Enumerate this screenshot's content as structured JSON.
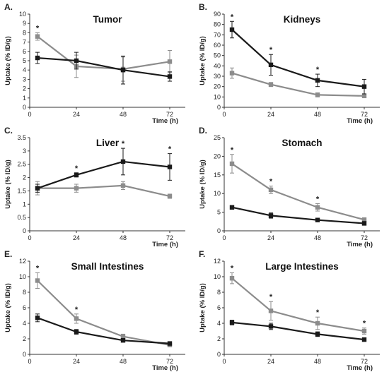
{
  "colors": {
    "series_a": "#1a1a1a",
    "series_b": "#8c8c8c",
    "axis": "#333333"
  },
  "chart_data": [
    {
      "type": "line",
      "panel_label": "A.",
      "title": "Tumor",
      "xlabel": "Time (h)",
      "ylabel": "Uptake (% ID/g)",
      "x": [
        4,
        24,
        48,
        72
      ],
      "xticks": [
        0,
        24,
        48,
        72
      ],
      "xlim": [
        0,
        80
      ],
      "ylim": [
        0,
        10
      ],
      "yticks": [
        0,
        1,
        2,
        3,
        4,
        5,
        6,
        7,
        8,
        9,
        10
      ],
      "series": [
        {
          "marker": "square",
          "values": [
            5.3,
            5.0,
            4.0,
            3.3
          ],
          "errors": [
            0.6,
            0.9,
            1.5,
            0.5
          ]
        },
        {
          "marker": "square",
          "values": [
            7.6,
            4.4,
            4.1,
            4.9
          ],
          "errors": [
            0.4,
            1.2,
            1.3,
            1.2
          ]
        }
      ],
      "significance": [
        "*",
        "",
        "",
        ""
      ]
    },
    {
      "type": "line",
      "panel_label": "B.",
      "title": "Kidneys",
      "xlabel": "Time (h)",
      "ylabel": "Uptake (% ID/g)",
      "x": [
        4,
        24,
        48,
        72
      ],
      "xticks": [
        0,
        24,
        48,
        72
      ],
      "xlim": [
        0,
        80
      ],
      "ylim": [
        0,
        90
      ],
      "yticks": [
        0,
        10,
        20,
        30,
        40,
        50,
        60,
        70,
        80,
        90
      ],
      "series": [
        {
          "marker": "square",
          "values": [
            75,
            41,
            26,
            20
          ],
          "errors": [
            8,
            10,
            6,
            7
          ]
        },
        {
          "marker": "square",
          "values": [
            33,
            22,
            12,
            11
          ],
          "errors": [
            5,
            2,
            2,
            1
          ]
        }
      ],
      "significance": [
        "*",
        "*",
        "*",
        ""
      ]
    },
    {
      "type": "line",
      "panel_label": "C.",
      "title": "Liver",
      "xlabel": "Time (h)",
      "ylabel": "Uptake (% ID/g)",
      "x": [
        4,
        24,
        48,
        72
      ],
      "xticks": [
        0,
        24,
        48,
        72
      ],
      "xlim": [
        0,
        80
      ],
      "ylim": [
        0,
        3.5
      ],
      "yticks": [
        0,
        0.5,
        1,
        1.5,
        2,
        2.5,
        3,
        3.5
      ],
      "series": [
        {
          "marker": "square",
          "values": [
            1.6,
            2.1,
            2.6,
            2.4
          ],
          "errors": [
            0.15,
            0.08,
            0.5,
            0.5
          ]
        },
        {
          "marker": "square",
          "values": [
            1.6,
            1.6,
            1.7,
            1.3
          ],
          "errors": [
            0.25,
            0.15,
            0.15,
            0.08
          ]
        }
      ],
      "significance": [
        "",
        "*",
        "*",
        "*"
      ]
    },
    {
      "type": "line",
      "panel_label": "D.",
      "title": "Stomach",
      "xlabel": "Time (h)",
      "ylabel": "Uptake (% ID/g)",
      "x": [
        4,
        24,
        48,
        72
      ],
      "xticks": [
        0,
        24,
        48,
        72
      ],
      "xlim": [
        0,
        80
      ],
      "ylim": [
        0,
        25
      ],
      "yticks": [
        0,
        5,
        10,
        15,
        20,
        25
      ],
      "series": [
        {
          "marker": "square",
          "values": [
            6.3,
            4.1,
            2.9,
            2.0
          ],
          "errors": [
            0.5,
            0.7,
            0.4,
            0.3
          ]
        },
        {
          "marker": "square",
          "values": [
            18,
            11,
            6.3,
            3.0
          ],
          "errors": [
            2.5,
            1.0,
            1.0,
            0.5
          ]
        }
      ],
      "significance": [
        "*",
        "*",
        "*",
        ""
      ]
    },
    {
      "type": "line",
      "panel_label": "E.",
      "title": "Small Intestines",
      "xlabel": "Time (h)",
      "ylabel": "Uptake (% ID/g)",
      "x": [
        4,
        24,
        48,
        72
      ],
      "xticks": [
        0,
        24,
        48,
        72
      ],
      "xlim": [
        0,
        80
      ],
      "ylim": [
        0,
        12
      ],
      "yticks": [
        0,
        2,
        4,
        6,
        8,
        10,
        12
      ],
      "series": [
        {
          "marker": "square",
          "values": [
            4.7,
            2.9,
            1.8,
            1.4
          ],
          "errors": [
            0.5,
            0.3,
            0.2,
            0.2
          ]
        },
        {
          "marker": "square",
          "values": [
            9.5,
            4.6,
            2.3,
            1.2
          ],
          "errors": [
            1.0,
            0.6,
            0.3,
            0.2
          ]
        }
      ],
      "significance": [
        "*",
        "*",
        "",
        ""
      ]
    },
    {
      "type": "line",
      "panel_label": "F.",
      "title": "Large Intestines",
      "xlabel": "Time (h)",
      "ylabel": "Uptake (% ID/g)",
      "x": [
        4,
        24,
        48,
        72
      ],
      "xticks": [
        0,
        24,
        48,
        72
      ],
      "xlim": [
        0,
        80
      ],
      "ylim": [
        0,
        12
      ],
      "yticks": [
        0,
        2,
        4,
        6,
        8,
        10,
        12
      ],
      "series": [
        {
          "marker": "square",
          "values": [
            4.1,
            3.6,
            2.6,
            1.9
          ],
          "errors": [
            0.3,
            0.4,
            0.3,
            0.2
          ]
        },
        {
          "marker": "square",
          "values": [
            9.8,
            5.6,
            4.0,
            3.0
          ],
          "errors": [
            0.7,
            1.2,
            0.8,
            0.4
          ]
        }
      ],
      "significance": [
        "*",
        "*",
        "*",
        "*"
      ]
    }
  ]
}
